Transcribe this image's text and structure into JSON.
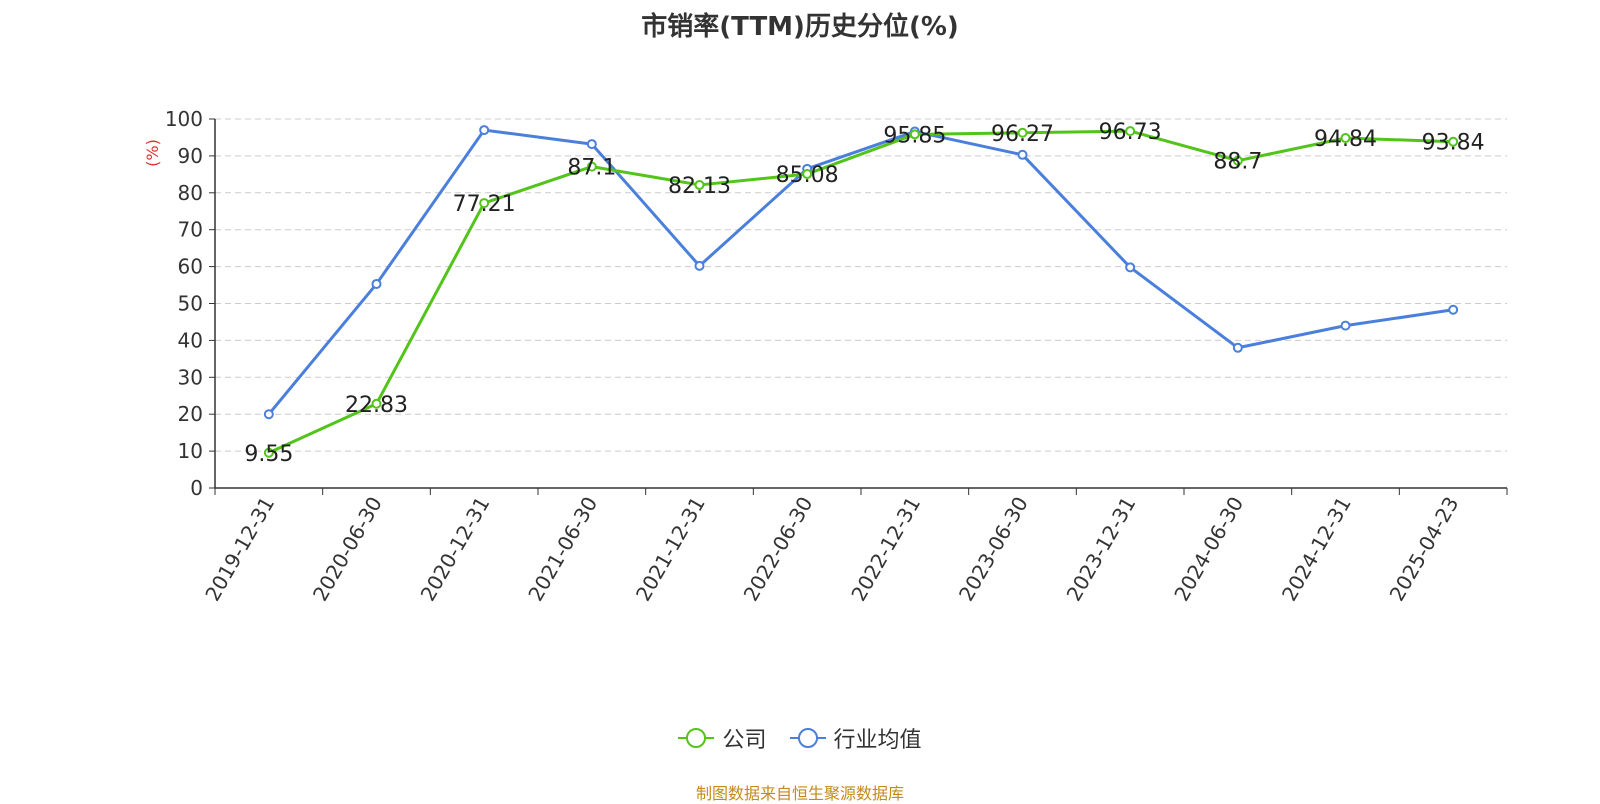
{
  "chart_data": {
    "type": "line",
    "title": "市销率(TTM)历史分位(%)",
    "ylabel": "(%)",
    "xlabel": "",
    "ylim": [
      0,
      100
    ],
    "yticks": [
      0,
      10,
      20,
      30,
      40,
      50,
      60,
      70,
      80,
      90,
      100
    ],
    "categories": [
      "2019-12-31",
      "2020-06-30",
      "2020-12-31",
      "2021-06-30",
      "2021-12-31",
      "2022-06-30",
      "2022-12-31",
      "2023-06-30",
      "2023-12-31",
      "2024-06-30",
      "2024-12-31",
      "2025-04-23"
    ],
    "series": [
      {
        "name": "公司",
        "color": "#52c41a",
        "values": [
          9.55,
          22.83,
          77.21,
          87.1,
          82.13,
          85.08,
          95.85,
          96.27,
          96.73,
          88.7,
          94.84,
          93.84
        ],
        "labels": [
          "9.55",
          "22.83",
          "77.21",
          "87.1",
          "82.13",
          "85.08",
          "95.85",
          "96.27",
          "96.73",
          "88.7",
          "94.84",
          "93.84"
        ]
      },
      {
        "name": "行业均值",
        "color": "#4a7fdc",
        "values": [
          20,
          55.3,
          97,
          93.2,
          60.2,
          86.5,
          96.6,
          90.3,
          59.8,
          38,
          44,
          48.3
        ]
      }
    ],
    "grid": true,
    "legend_position": "bottom-center"
  },
  "legend": {
    "company_label": "公司",
    "industry_label": "行业均值"
  },
  "footer": {
    "source_text": "制图数据来自恒生聚源数据库"
  }
}
